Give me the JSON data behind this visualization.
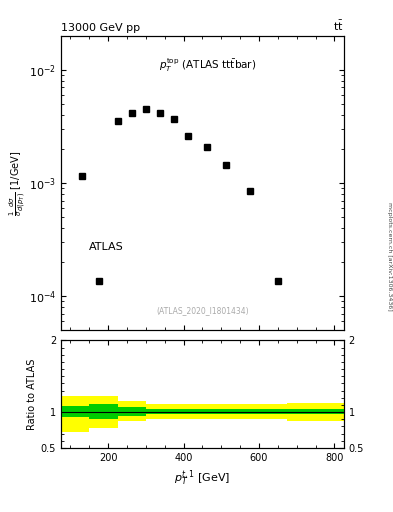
{
  "title_top": "13000 GeV pp",
  "title_top_right": "tt",
  "annotation_legend": "p_T^{top} (ATLAS ttbar)",
  "atlas_label": "ATLAS",
  "atlas_ref": "(ATLAS_2020_I1801434)",
  "mcplots_label": "mcplots.cern.ch [arXiv:1306.3436]",
  "data_x": [
    130,
    175,
    225,
    262.5,
    300,
    337.5,
    375,
    412.5,
    462.5,
    512.5,
    575,
    650
  ],
  "data_y": [
    0.00115,
    0.000135,
    0.0035,
    0.0042,
    0.0045,
    0.0042,
    0.0037,
    0.0026,
    0.0021,
    0.00145,
    0.00085,
    0.000135
  ],
  "ylim_main": [
    5e-05,
    0.02
  ],
  "xlim": [
    75,
    825
  ],
  "ratio_x_edges": [
    75,
    150,
    225,
    300,
    375,
    450,
    525,
    600,
    675,
    750,
    825
  ],
  "ratio_green_lo": [
    0.93,
    0.9,
    0.95,
    0.97,
    0.97,
    0.97,
    0.97,
    0.97,
    0.97,
    0.97
  ],
  "ratio_green_hi": [
    1.08,
    1.12,
    1.07,
    1.05,
    1.05,
    1.05,
    1.05,
    1.05,
    1.05,
    1.05
  ],
  "ratio_yellow_lo": [
    0.72,
    0.78,
    0.87,
    0.9,
    0.9,
    0.9,
    0.9,
    0.9,
    0.88,
    0.88
  ],
  "ratio_yellow_hi": [
    1.22,
    1.22,
    1.15,
    1.12,
    1.12,
    1.12,
    1.12,
    1.12,
    1.13,
    1.13
  ],
  "ratio_ylim": [
    0.5,
    2.0
  ],
  "color_data": "#000000",
  "color_green": "#00cc00",
  "color_yellow": "#ffff00",
  "marker_size": 4,
  "bg_color": "#ffffff"
}
